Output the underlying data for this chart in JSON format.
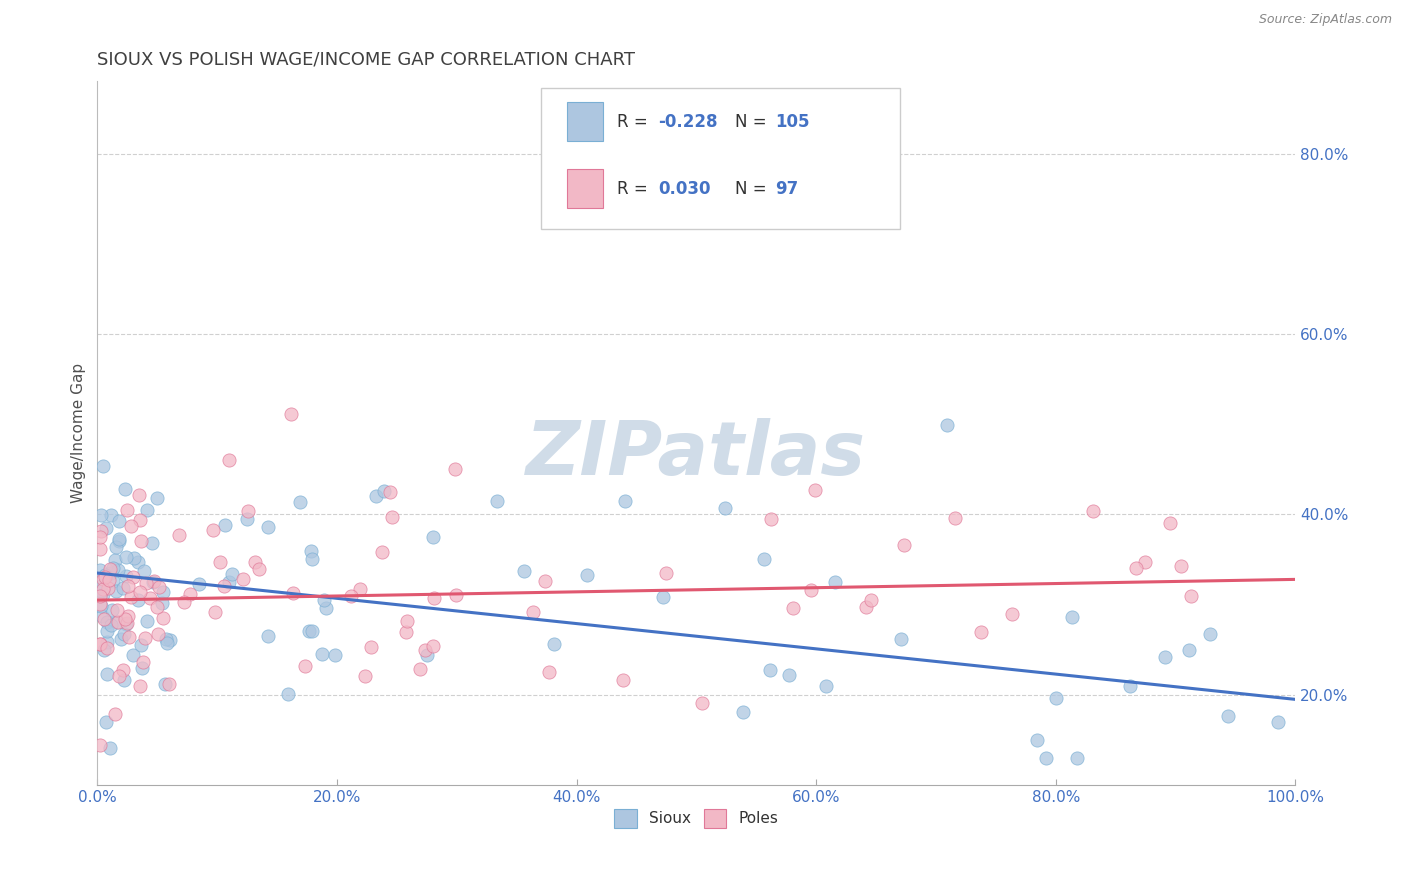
{
  "title": "SIOUX VS POLISH WAGE/INCOME GAP CORRELATION CHART",
  "source": "Source: ZipAtlas.com",
  "ylabel": "Wage/Income Gap",
  "xlim": [
    0.0,
    100.0
  ],
  "ylim": [
    0.1,
    0.88
  ],
  "yticks": [
    0.2,
    0.4,
    0.6,
    0.8
  ],
  "xticks": [
    0.0,
    20.0,
    40.0,
    60.0,
    80.0,
    100.0
  ],
  "sioux_color": "#adc6e0",
  "poles_color": "#f2b8c6",
  "sioux_line_color": "#4472c4",
  "poles_line_color": "#e05870",
  "sioux_edge_color": "#7aafd4",
  "poles_edge_color": "#e07898",
  "sioux_R": -0.228,
  "sioux_N": 105,
  "poles_R": 0.03,
  "poles_N": 97,
  "stat_text_color": "#4472c4",
  "background_color": "#ffffff",
  "grid_color": "#d0d0d0",
  "title_color": "#404040",
  "watermark_text": "ZIPatlas",
  "watermark_color": "#d0dce8",
  "sioux_trend_start_y": 0.335,
  "sioux_trend_end_y": 0.195,
  "poles_trend_start_y": 0.305,
  "poles_trend_end_y": 0.328
}
